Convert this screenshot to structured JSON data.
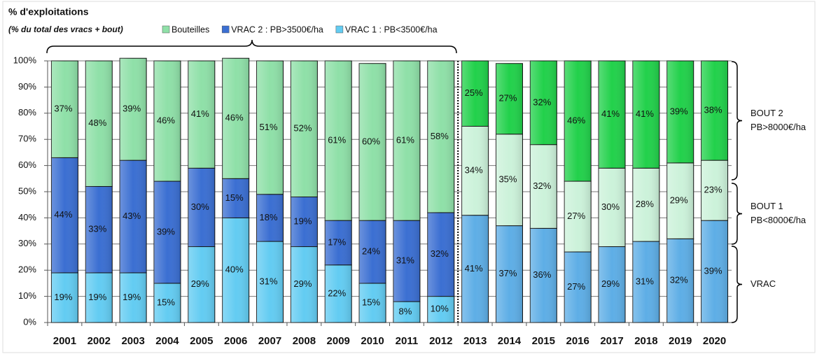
{
  "chart_data": {
    "type": "stacked-bar",
    "title": "% d'exploitations",
    "subtitle": "(% du total des vracs + bout)",
    "categories": [
      "2001",
      "2002",
      "2003",
      "2004",
      "2005",
      "2006",
      "2007",
      "2008",
      "2009",
      "2010",
      "2011",
      "2012",
      "2013",
      "2014",
      "2015",
      "2016",
      "2017",
      "2018",
      "2019",
      "2020"
    ],
    "series": [
      {
        "name": "Bouteilles",
        "color": "#8fe0a8",
        "values": [
          37,
          48,
          39,
          46,
          41,
          46,
          51,
          52,
          61,
          60,
          61,
          58,
          null,
          null,
          null,
          null,
          null,
          null,
          null,
          null
        ],
        "value_labels": [
          "37%",
          "48%",
          "39%",
          "46%",
          "41%",
          "46%",
          "51%",
          "52%",
          "61%",
          "60%",
          "61%",
          "58%",
          null,
          null,
          null,
          null,
          null,
          null,
          null,
          null
        ]
      },
      {
        "name": "VRAC 2 : PB>3500€/ha",
        "color": "#3b6fd2",
        "values": [
          44,
          33,
          43,
          39,
          30,
          15,
          18,
          19,
          17,
          24,
          31,
          32,
          null,
          null,
          null,
          null,
          null,
          null,
          null,
          null
        ],
        "value_labels": [
          "44%",
          "33%",
          "43%",
          "39%",
          "30%",
          "15%",
          "18%",
          "19%",
          "17%",
          "24%",
          "31%",
          "32%",
          null,
          null,
          null,
          null,
          null,
          null,
          null,
          null
        ]
      },
      {
        "name": "VRAC 1 : PB<3500€/ha",
        "color": "#63ccf2",
        "values": [
          19,
          19,
          19,
          15,
          29,
          40,
          31,
          29,
          22,
          15,
          8,
          10,
          null,
          null,
          null,
          null,
          null,
          null,
          null,
          null
        ],
        "value_labels": [
          "19%",
          "19%",
          "19%",
          "15%",
          "29%",
          "40%",
          "31%",
          "29%",
          "22%",
          "15%",
          "8%",
          "10%",
          null,
          null,
          null,
          null,
          null,
          null,
          null,
          null
        ]
      },
      {
        "name": "BOUT 2",
        "note": "PB>8000€/ha",
        "color": "#22d14b",
        "values": [
          null,
          null,
          null,
          null,
          null,
          null,
          null,
          null,
          null,
          null,
          null,
          null,
          25,
          27,
          32,
          46,
          41,
          41,
          39,
          38
        ],
        "value_labels": [
          null,
          null,
          null,
          null,
          null,
          null,
          null,
          null,
          null,
          null,
          null,
          null,
          "25%",
          "27%",
          "32%",
          "46%",
          "41%",
          "41%",
          "39%",
          "38%"
        ]
      },
      {
        "name": "BOUT 1",
        "note": "PB<8000€/ha",
        "color": "#ccf2da",
        "values": [
          null,
          null,
          null,
          null,
          null,
          null,
          null,
          null,
          null,
          null,
          null,
          null,
          34,
          35,
          32,
          27,
          30,
          28,
          29,
          23
        ],
        "value_labels": [
          null,
          null,
          null,
          null,
          null,
          null,
          null,
          null,
          null,
          null,
          null,
          null,
          "34%",
          "35%",
          "32%",
          "27%",
          "30%",
          "28%",
          "29%",
          "23%"
        ]
      },
      {
        "name": "VRAC",
        "color": "#5eaee6",
        "values": [
          null,
          null,
          null,
          null,
          null,
          null,
          null,
          null,
          null,
          null,
          null,
          null,
          41,
          37,
          36,
          27,
          29,
          31,
          32,
          39
        ],
        "value_labels": [
          null,
          null,
          null,
          null,
          null,
          null,
          null,
          null,
          null,
          null,
          null,
          null,
          "41%",
          "37%",
          "36%",
          "27%",
          "29%",
          "31%",
          "32%",
          "39%"
        ]
      }
    ],
    "ylim": [
      0,
      100
    ],
    "yticks": [
      {
        "value": 0,
        "label": "0%"
      },
      {
        "value": 10,
        "label": "10%"
      },
      {
        "value": 20,
        "label": "20%"
      },
      {
        "value": 30,
        "label": "30%"
      },
      {
        "value": 40,
        "label": "40%"
      },
      {
        "value": 50,
        "label": "50%"
      },
      {
        "value": 60,
        "label": "60%"
      },
      {
        "value": 70,
        "label": "70%"
      },
      {
        "value": 80,
        "label": "80%"
      },
      {
        "value": 90,
        "label": "90%"
      },
      {
        "value": 100,
        "label": "100%"
      }
    ],
    "grid": true
  }
}
